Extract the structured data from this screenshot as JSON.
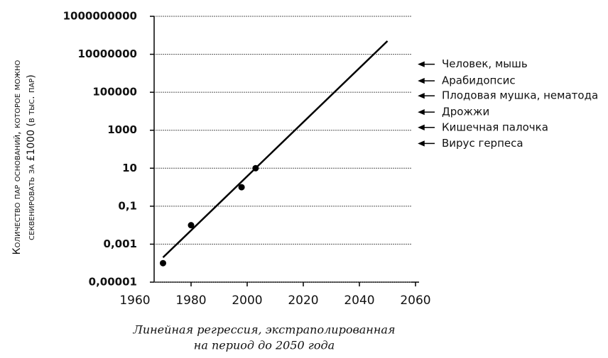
{
  "chart_data": {
    "type": "scatter",
    "xlabel": [
      "Линейная регрессия, экстраполированная",
      "на период до 2050 года"
    ],
    "ylabel": [
      "Количество пар оснований, которое можно",
      "секвенировать за £1000 (в тыс. пар)"
    ],
    "log_y": true,
    "grid": true,
    "xlim": [
      1960,
      2060
    ],
    "xticks": [
      1960,
      1980,
      2000,
      2020,
      2040,
      2060
    ],
    "ylim": [
      1e-05,
      1000000000
    ],
    "yticks": [
      {
        "value": 1e-05,
        "label": "0,00001"
      },
      {
        "value": 0.001,
        "label": "0,001"
      },
      {
        "value": 0.1,
        "label": "0,1"
      },
      10,
      1000,
      100000,
      10000000,
      1000000000
    ],
    "series": [
      {
        "type": "scatter",
        "color": "#000000",
        "x": [
          1970,
          1980,
          1998,
          2003
        ],
        "values": [
          0.0001,
          0.01,
          1,
          10
        ]
      },
      {
        "type": "line",
        "color": "#000000",
        "x": [
          1970,
          2050
        ],
        "values": [
          0.0002,
          50000000
        ]
      }
    ],
    "annotations": [
      {
        "text": "Человек, мышь",
        "value": 3000000
      },
      {
        "text": "Арабидопсис",
        "value": 400000
      },
      {
        "text": "Плодовая мушка, нематода",
        "value": 65000
      },
      {
        "text": "Дрожжи",
        "value": 9000
      },
      {
        "text": "Кишечная палочка",
        "value": 1400
      },
      {
        "text": "Вирус герпеса",
        "value": 200
      }
    ]
  }
}
